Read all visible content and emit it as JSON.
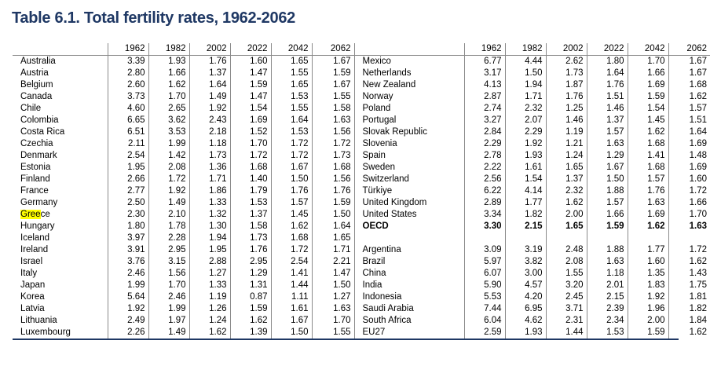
{
  "title": "Table 6.1. Total fertility rates, 1962-2062",
  "columns": [
    "1962",
    "1982",
    "2002",
    "2022",
    "2042",
    "2062"
  ],
  "left_rows": [
    {
      "name": "Australia",
      "values": [
        "3.39",
        "1.93",
        "1.76",
        "1.60",
        "1.65",
        "1.67"
      ]
    },
    {
      "name": "Austria",
      "values": [
        "2.80",
        "1.66",
        "1.37",
        "1.47",
        "1.55",
        "1.59"
      ]
    },
    {
      "name": "Belgium",
      "values": [
        "2.60",
        "1.62",
        "1.64",
        "1.59",
        "1.65",
        "1.67"
      ]
    },
    {
      "name": "Canada",
      "values": [
        "3.73",
        "1.70",
        "1.49",
        "1.47",
        "1.53",
        "1.55"
      ]
    },
    {
      "name": "Chile",
      "values": [
        "4.60",
        "2.65",
        "1.92",
        "1.54",
        "1.55",
        "1.58"
      ]
    },
    {
      "name": "Colombia",
      "values": [
        "6.65",
        "3.62",
        "2.43",
        "1.69",
        "1.64",
        "1.63"
      ]
    },
    {
      "name": "Costa Rica",
      "values": [
        "6.51",
        "3.53",
        "2.18",
        "1.52",
        "1.53",
        "1.56"
      ]
    },
    {
      "name": "Czechia",
      "values": [
        "2.11",
        "1.99",
        "1.18",
        "1.70",
        "1.72",
        "1.72"
      ]
    },
    {
      "name": "Denmark",
      "values": [
        "2.54",
        "1.42",
        "1.73",
        "1.72",
        "1.72",
        "1.73"
      ]
    },
    {
      "name": "Estonia",
      "values": [
        "1.95",
        "2.08",
        "1.36",
        "1.68",
        "1.67",
        "1.68"
      ]
    },
    {
      "name": "Finland",
      "values": [
        "2.66",
        "1.72",
        "1.71",
        "1.40",
        "1.50",
        "1.56"
      ]
    },
    {
      "name": "France",
      "values": [
        "2.77",
        "1.92",
        "1.86",
        "1.79",
        "1.76",
        "1.76"
      ]
    },
    {
      "name": "Germany",
      "values": [
        "2.50",
        "1.49",
        "1.33",
        "1.53",
        "1.57",
        "1.59"
      ]
    },
    {
      "name": "Greece",
      "highlight": "Gree",
      "rest": "ce",
      "values": [
        "2.30",
        "2.10",
        "1.32",
        "1.37",
        "1.45",
        "1.50"
      ]
    },
    {
      "name": "Hungary",
      "values": [
        "1.80",
        "1.78",
        "1.30",
        "1.58",
        "1.62",
        "1.64"
      ]
    },
    {
      "name": "Iceland",
      "values": [
        "3.97",
        "2.28",
        "1.94",
        "1.73",
        "1.68",
        "1.65"
      ]
    },
    {
      "name": "Ireland",
      "values": [
        "3.91",
        "2.95",
        "1.95",
        "1.76",
        "1.72",
        "1.71"
      ]
    },
    {
      "name": "Israel",
      "values": [
        "3.76",
        "3.15",
        "2.88",
        "2.95",
        "2.54",
        "2.21"
      ]
    },
    {
      "name": "Italy",
      "values": [
        "2.46",
        "1.56",
        "1.27",
        "1.29",
        "1.41",
        "1.47"
      ]
    },
    {
      "name": "Japan",
      "values": [
        "1.99",
        "1.70",
        "1.33",
        "1.31",
        "1.44",
        "1.50"
      ]
    },
    {
      "name": "Korea",
      "values": [
        "5.64",
        "2.46",
        "1.19",
        "0.87",
        "1.11",
        "1.27"
      ]
    },
    {
      "name": "Latvia",
      "values": [
        "1.92",
        "1.99",
        "1.26",
        "1.59",
        "1.61",
        "1.63"
      ]
    },
    {
      "name": "Lithuania",
      "values": [
        "2.49",
        "1.97",
        "1.24",
        "1.62",
        "1.67",
        "1.70"
      ]
    },
    {
      "name": "Luxembourg",
      "values": [
        "2.26",
        "1.49",
        "1.62",
        "1.39",
        "1.50",
        "1.55"
      ]
    }
  ],
  "right_rows": [
    {
      "name": "Mexico",
      "values": [
        "6.77",
        "4.44",
        "2.62",
        "1.80",
        "1.70",
        "1.67"
      ]
    },
    {
      "name": "Netherlands",
      "values": [
        "3.17",
        "1.50",
        "1.73",
        "1.64",
        "1.66",
        "1.67"
      ]
    },
    {
      "name": "New Zealand",
      "values": [
        "4.13",
        "1.94",
        "1.87",
        "1.76",
        "1.69",
        "1.68"
      ]
    },
    {
      "name": "Norway",
      "values": [
        "2.87",
        "1.71",
        "1.76",
        "1.51",
        "1.59",
        "1.62"
      ]
    },
    {
      "name": "Poland",
      "values": [
        "2.74",
        "2.32",
        "1.25",
        "1.46",
        "1.54",
        "1.57"
      ]
    },
    {
      "name": "Portugal",
      "values": [
        "3.27",
        "2.07",
        "1.46",
        "1.37",
        "1.45",
        "1.51"
      ]
    },
    {
      "name": "Slovak Republic",
      "values": [
        "2.84",
        "2.29",
        "1.19",
        "1.57",
        "1.62",
        "1.64"
      ]
    },
    {
      "name": "Slovenia",
      "values": [
        "2.29",
        "1.92",
        "1.21",
        "1.63",
        "1.68",
        "1.69"
      ]
    },
    {
      "name": "Spain",
      "values": [
        "2.78",
        "1.93",
        "1.24",
        "1.29",
        "1.41",
        "1.48"
      ]
    },
    {
      "name": "Sweden",
      "values": [
        "2.22",
        "1.61",
        "1.65",
        "1.67",
        "1.68",
        "1.69"
      ]
    },
    {
      "name": "Switzerland",
      "values": [
        "2.56",
        "1.54",
        "1.37",
        "1.50",
        "1.57",
        "1.60"
      ]
    },
    {
      "name": "Türkiye",
      "values": [
        "6.22",
        "4.14",
        "2.32",
        "1.88",
        "1.76",
        "1.72"
      ]
    },
    {
      "name": "United Kingdom",
      "values": [
        "2.89",
        "1.77",
        "1.62",
        "1.57",
        "1.63",
        "1.66"
      ]
    },
    {
      "name": "United States",
      "values": [
        "3.34",
        "1.82",
        "2.00",
        "1.66",
        "1.69",
        "1.70"
      ]
    },
    {
      "name": "OECD",
      "bold": true,
      "values": [
        "3.30",
        "2.15",
        "1.65",
        "1.59",
        "1.62",
        "1.63"
      ]
    },
    {
      "name": "",
      "values": [
        "",
        "",
        "",
        "",
        "",
        ""
      ]
    },
    {
      "name": "Argentina",
      "values": [
        "3.09",
        "3.19",
        "2.48",
        "1.88",
        "1.77",
        "1.72"
      ]
    },
    {
      "name": "Brazil",
      "values": [
        "5.97",
        "3.82",
        "2.08",
        "1.63",
        "1.60",
        "1.62"
      ]
    },
    {
      "name": "China",
      "values": [
        "6.07",
        "3.00",
        "1.55",
        "1.18",
        "1.35",
        "1.43"
      ]
    },
    {
      "name": "India",
      "values": [
        "5.90",
        "4.57",
        "3.20",
        "2.01",
        "1.83",
        "1.75"
      ]
    },
    {
      "name": "Indonesia",
      "values": [
        "5.53",
        "4.20",
        "2.45",
        "2.15",
        "1.92",
        "1.81"
      ]
    },
    {
      "name": "Saudi Arabia",
      "values": [
        "7.44",
        "6.95",
        "3.71",
        "2.39",
        "1.96",
        "1.82"
      ]
    },
    {
      "name": "South Africa",
      "values": [
        "6.04",
        "4.62",
        "2.31",
        "2.34",
        "2.00",
        "1.84"
      ]
    },
    {
      "name": "EU27",
      "values": [
        "2.59",
        "1.93",
        "1.44",
        "1.53",
        "1.59",
        "1.62"
      ]
    }
  ],
  "colors": {
    "title": "#1f3864",
    "highlight": "#ffff00",
    "rule": "#1f3864"
  }
}
